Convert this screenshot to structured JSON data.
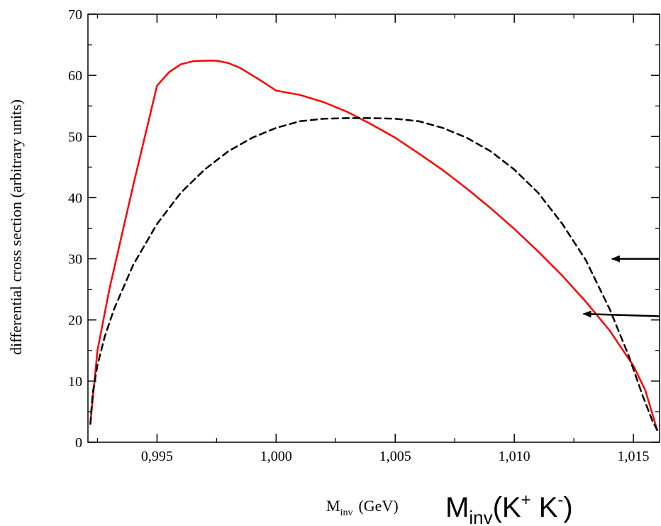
{
  "chart_data": {
    "type": "line",
    "ylabel": "differential cross section (arbitrary units)",
    "xlabel": {
      "main": "M",
      "sub": "inv",
      "unit": "(GeV)"
    },
    "xlim": [
      0.9921,
      1.0161
    ],
    "ylim": [
      0,
      70
    ],
    "x_ticks": [
      {
        "value": 0.995,
        "label": "0,995"
      },
      {
        "value": 1.0,
        "label": "1,000"
      },
      {
        "value": 1.005,
        "label": "1,005"
      },
      {
        "value": 1.01,
        "label": "1,010"
      },
      {
        "value": 1.015,
        "label": "1,015"
      }
    ],
    "y_ticks": [
      {
        "value": 0,
        "label": "0"
      },
      {
        "value": 10,
        "label": "10"
      },
      {
        "value": 20,
        "label": "20"
      },
      {
        "value": 30,
        "label": "30"
      },
      {
        "value": 40,
        "label": "40"
      },
      {
        "value": 50,
        "label": "50"
      },
      {
        "value": 60,
        "label": "60"
      },
      {
        "value": 70,
        "label": "70"
      }
    ],
    "series": [
      {
        "color": "#ff0000",
        "style": "solid",
        "x": [
          0.9922,
          0.9925,
          0.993,
          0.994,
          0.995,
          0.9955,
          0.996,
          0.9965,
          0.997,
          0.9975,
          0.998,
          0.9985,
          0.999,
          0.9995,
          1.0,
          1.001,
          1.002,
          1.003,
          1.004,
          1.005,
          1.006,
          1.007,
          1.008,
          1.009,
          1.01,
          1.011,
          1.012,
          1.013,
          1.014,
          1.015,
          1.0155,
          1.016
        ],
        "y": [
          3,
          15,
          25,
          42,
          58.3,
          60.5,
          61.8,
          62.3,
          62.4,
          62.4,
          62.0,
          61.2,
          60.0,
          58.8,
          57.5,
          56.8,
          55.6,
          54.0,
          52.0,
          49.8,
          47.2,
          44.5,
          41.5,
          38.3,
          34.9,
          31.2,
          27.3,
          23.0,
          18.3,
          12.5,
          8.5,
          2
        ]
      },
      {
        "color": "#000000",
        "style": "dashed",
        "x": [
          0.9922,
          0.9923,
          0.9925,
          0.9928,
          0.9932,
          0.994,
          0.995,
          0.996,
          0.997,
          0.998,
          0.999,
          1.0,
          1.001,
          1.002,
          1.003,
          1.004,
          1.005,
          1.006,
          1.007,
          1.008,
          1.009,
          1.01,
          1.011,
          1.012,
          1.013,
          1.014,
          1.0148,
          1.0154,
          1.0158,
          1.016
        ],
        "y": [
          3,
          8,
          12.6,
          17.2,
          21.8,
          29,
          35.7,
          40.8,
          44.6,
          47.6,
          49.8,
          51.4,
          52.5,
          52.9,
          53.0,
          53.0,
          52.9,
          52.5,
          51.4,
          49.8,
          47.6,
          44.6,
          40.8,
          35.8,
          29.8,
          21.8,
          14.2,
          7.5,
          3.5,
          2
        ]
      }
    ],
    "annotations": [
      {
        "type": "arrow",
        "from": [
          1.0161,
          30.0
        ],
        "to": [
          1.0141,
          30.0
        ]
      },
      {
        "type": "arrow",
        "from": [
          1.0161,
          20.6
        ],
        "to": [
          1.0129,
          21.0
        ]
      }
    ]
  },
  "overlay_label": {
    "main": "M",
    "sub": "inv",
    "rest": "(K",
    "sup1": "+",
    "mid": " K",
    "sup2": "-",
    "end": ")"
  }
}
